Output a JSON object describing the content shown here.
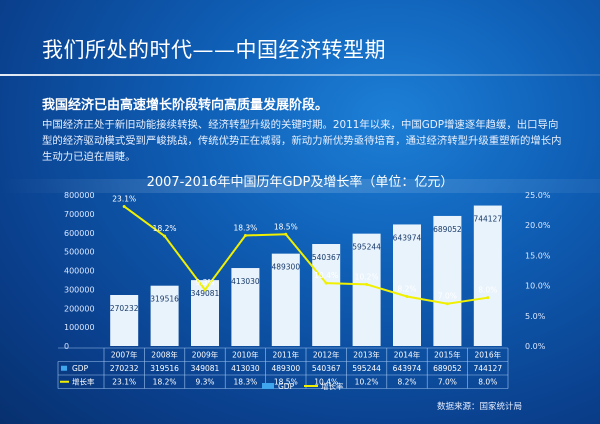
{
  "slide": {
    "title": "我们所处的时代——中国经济转型期",
    "subheading": "我国经济已由高速增长阶段转向高质量发展阶段。",
    "body": "中国经济正处于新旧动能接续转换、经济转型升级的关键时期。2011年以来，中国GDP增速逐年趋缓，出口导向型的经济驱动模式受到严峻挑战，传统优势正在减弱，新动力新优势亟待培育，通过经济转型升级重塑新的增长内生动力已迫在眉睫。",
    "source": "数据来源：国家统计局"
  },
  "colors": {
    "bar": "#e9f3fc",
    "line": "#f0f000",
    "legend_gdp": "#3fa6ee",
    "table_border": "#9ec4f0"
  },
  "chart_data": {
    "type": "bar",
    "title": "2007-2016年中国历年GDP及增长率（单位：亿元）",
    "categories": [
      "2007年",
      "2008年",
      "2009年",
      "2010年",
      "2011年",
      "2012年",
      "2013年",
      "2014年",
      "2015年",
      "2016年"
    ],
    "series": [
      {
        "name": "GDP",
        "type": "bar",
        "axis": "left",
        "values": [
          270232,
          319516,
          349081,
          413030,
          489300,
          540367,
          595244,
          643974,
          689052,
          744127
        ]
      },
      {
        "name": "增长率",
        "type": "line",
        "axis": "right",
        "values": [
          23.1,
          18.2,
          9.3,
          18.3,
          18.5,
          10.4,
          10.2,
          8.2,
          7.0,
          8.0
        ],
        "labels": [
          "23.1%",
          "18.2%",
          "9.3%",
          "18.3%",
          "18.5%",
          "10.4%",
          "10.2%",
          "8.2%",
          "7.0%",
          "8.0%"
        ]
      }
    ],
    "y_left": {
      "ticks": [
        "0",
        "100000",
        "200000",
        "300000",
        "400000",
        "500000",
        "600000",
        "700000",
        "800000"
      ],
      "range": [
        0,
        800000
      ]
    },
    "y_right": {
      "ticks": [
        "0.0%",
        "5.0%",
        "10.0%",
        "15.0%",
        "20.0%",
        "25.0%"
      ],
      "range": [
        0,
        25
      ]
    },
    "table": {
      "rows": [
        {
          "label": "GDP",
          "values": [
            "270232",
            "319516",
            "349081",
            "413030",
            "489300",
            "540367",
            "595244",
            "643974",
            "689052",
            "744127"
          ]
        },
        {
          "label": "增长率",
          "values": [
            "23.1%",
            "18.2%",
            "9.3%",
            "18.3%",
            "18.5%",
            "10.4%",
            "10.2%",
            "8.2%",
            "7.0%",
            "8.0%"
          ]
        }
      ]
    },
    "legend": [
      "GDP",
      "增长率"
    ],
    "legend_position": "bottom"
  }
}
